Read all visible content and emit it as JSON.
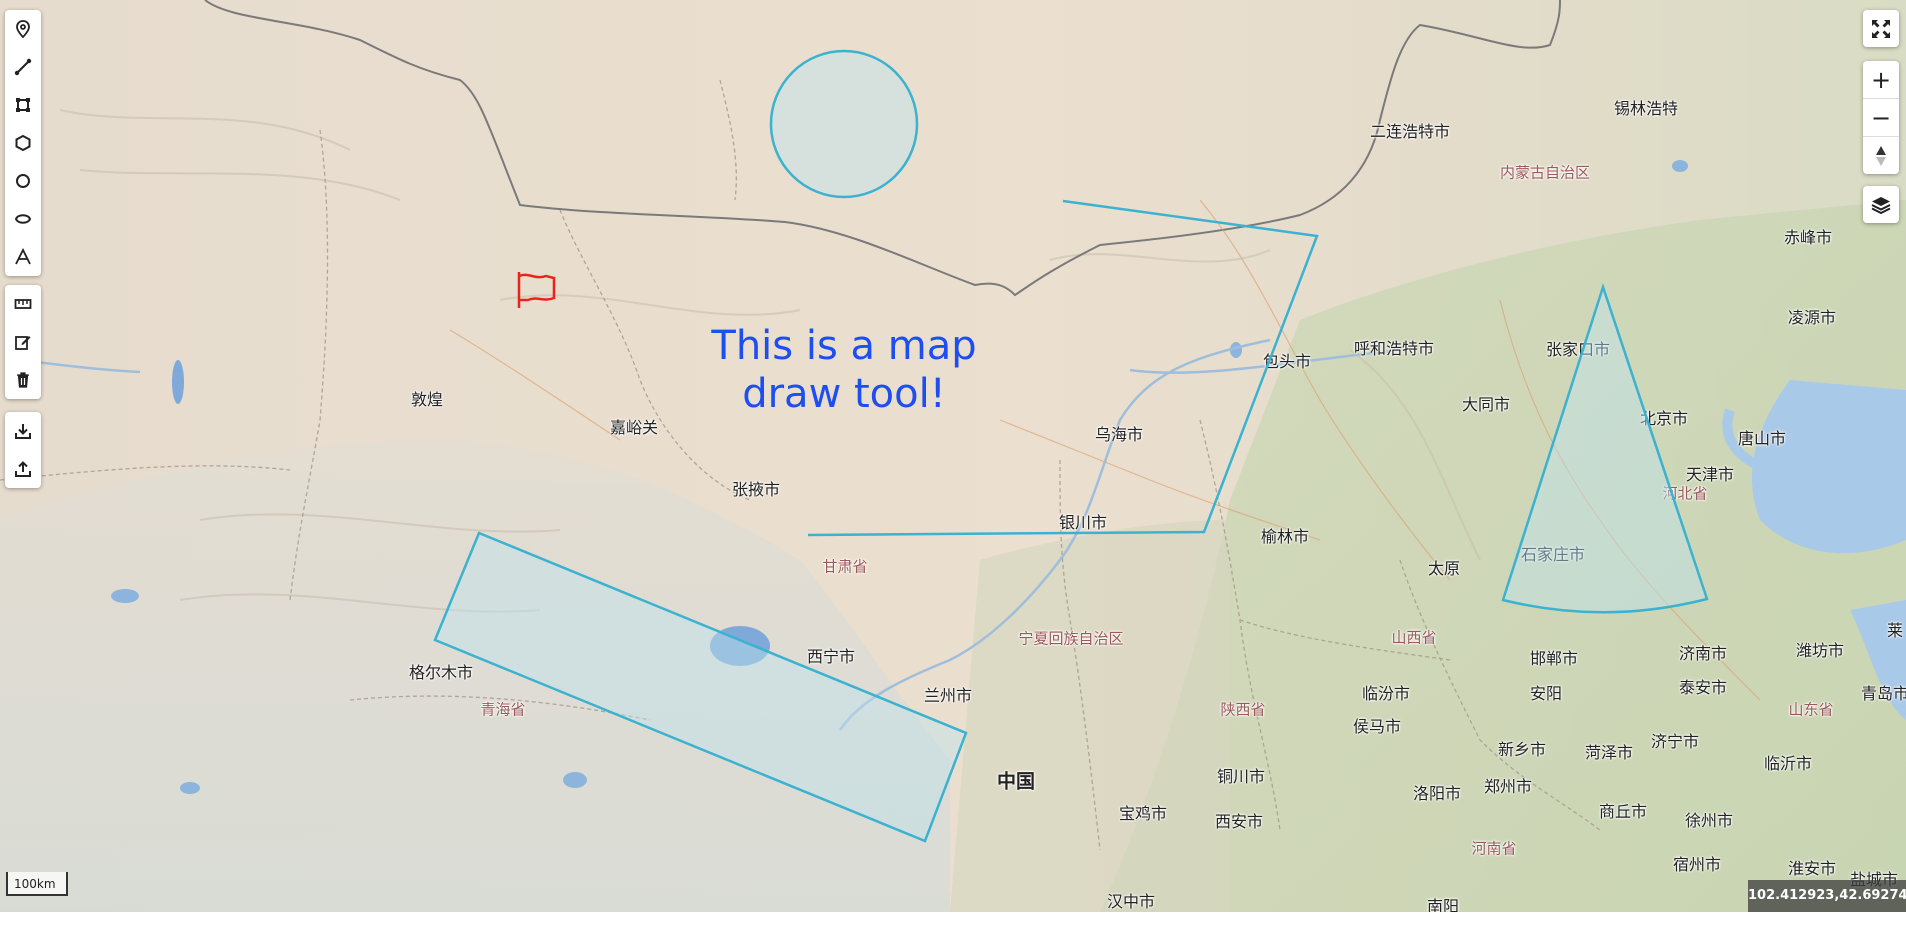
{
  "map": {
    "annotation_text_line1": "This is a map",
    "annotation_text_line2": "draw tool!",
    "scale_label": "100km",
    "coordinates": "102.412923,42.692740",
    "labels": [
      {
        "id": "erlian",
        "text": "二连浩特市",
        "kind": "city"
      },
      {
        "id": "xilinhot",
        "text": "锡林浩特",
        "kind": "city"
      },
      {
        "id": "neimenggu",
        "text": "内蒙古自治区",
        "kind": "province"
      },
      {
        "id": "chifeng",
        "text": "赤峰市",
        "kind": "city"
      },
      {
        "id": "lingyuan",
        "text": "凌源市",
        "kind": "city"
      },
      {
        "id": "baotou",
        "text": "包头市",
        "kind": "city"
      },
      {
        "id": "hohhot",
        "text": "呼和浩特市",
        "kind": "city"
      },
      {
        "id": "zhangjiakou",
        "text": "张家口市",
        "kind": "city"
      },
      {
        "id": "datong",
        "text": "大同市",
        "kind": "city"
      },
      {
        "id": "beijing",
        "text": "北京市",
        "kind": "city"
      },
      {
        "id": "tangshan",
        "text": "唐山市",
        "kind": "city"
      },
      {
        "id": "tianjin",
        "text": "天津市",
        "kind": "city"
      },
      {
        "id": "hebei",
        "text": "河北省",
        "kind": "province"
      },
      {
        "id": "dunhuang",
        "text": "敦煌",
        "kind": "city"
      },
      {
        "id": "jiayuguan",
        "text": "嘉峪关",
        "kind": "city"
      },
      {
        "id": "wuhai",
        "text": "乌海市",
        "kind": "city"
      },
      {
        "id": "zhangye",
        "text": "张掖市",
        "kind": "city"
      },
      {
        "id": "yinchuan",
        "text": "银川市",
        "kind": "city"
      },
      {
        "id": "yulin",
        "text": "榆林市",
        "kind": "city"
      },
      {
        "id": "taiyuan",
        "text": "太原",
        "kind": "city"
      },
      {
        "id": "shijiazhuang",
        "text": "石家庄市",
        "kind": "city"
      },
      {
        "id": "gansu",
        "text": "甘肃省",
        "kind": "province"
      },
      {
        "id": "ningxia",
        "text": "宁夏回族自治区",
        "kind": "province"
      },
      {
        "id": "shanxi",
        "text": "山西省",
        "kind": "province"
      },
      {
        "id": "xining",
        "text": "西宁市",
        "kind": "city"
      },
      {
        "id": "golmud",
        "text": "格尔木市",
        "kind": "city"
      },
      {
        "id": "qinghai",
        "text": "青海省",
        "kind": "province"
      },
      {
        "id": "lanzhou",
        "text": "兰州市",
        "kind": "city"
      },
      {
        "id": "handan",
        "text": "邯郸市",
        "kind": "city"
      },
      {
        "id": "jinan",
        "text": "济南市",
        "kind": "city"
      },
      {
        "id": "weifang",
        "text": "潍坊市",
        "kind": "city"
      },
      {
        "id": "lai",
        "text": "莱",
        "kind": "city"
      },
      {
        "id": "taian",
        "text": "泰安市",
        "kind": "city"
      },
      {
        "id": "anyang",
        "text": "安阳",
        "kind": "city"
      },
      {
        "id": "linfen",
        "text": "临汾市",
        "kind": "city"
      },
      {
        "id": "shaanxi",
        "text": "陕西省",
        "kind": "province"
      },
      {
        "id": "shandong",
        "text": "山东省",
        "kind": "province"
      },
      {
        "id": "qingdao",
        "text": "青岛市",
        "kind": "city"
      },
      {
        "id": "houma",
        "text": "侯马市",
        "kind": "city"
      },
      {
        "id": "xinxiang",
        "text": "新乡市",
        "kind": "city"
      },
      {
        "id": "heze",
        "text": "菏泽市",
        "kind": "city"
      },
      {
        "id": "jining",
        "text": "济宁市",
        "kind": "city"
      },
      {
        "id": "linyi",
        "text": "临沂市",
        "kind": "city"
      },
      {
        "id": "zhongguo",
        "text": "中国",
        "kind": "country"
      },
      {
        "id": "tongchuan",
        "text": "铜川市",
        "kind": "city"
      },
      {
        "id": "luoyang",
        "text": "洛阳市",
        "kind": "city"
      },
      {
        "id": "zhengzhou",
        "text": "郑州市",
        "kind": "city"
      },
      {
        "id": "baoji",
        "text": "宝鸡市",
        "kind": "city"
      },
      {
        "id": "xian",
        "text": "西安市",
        "kind": "city"
      },
      {
        "id": "shangqiu",
        "text": "商丘市",
        "kind": "city"
      },
      {
        "id": "xuzhou",
        "text": "徐州市",
        "kind": "city"
      },
      {
        "id": "henan",
        "text": "河南省",
        "kind": "province"
      },
      {
        "id": "suzhou",
        "text": "宿州市",
        "kind": "city"
      },
      {
        "id": "huaian",
        "text": "淮安市",
        "kind": "city"
      },
      {
        "id": "yancheng",
        "text": "盐城市",
        "kind": "city"
      },
      {
        "id": "hanzhong",
        "text": "汉中市",
        "kind": "city"
      },
      {
        "id": "nanyang",
        "text": "南阳",
        "kind": "city"
      }
    ]
  },
  "draw_toolbar": [
    {
      "id": "marker",
      "icon": "marker-icon"
    },
    {
      "id": "polyline",
      "icon": "polyline-icon"
    },
    {
      "id": "rectangle",
      "icon": "rectangle-icon"
    },
    {
      "id": "polygon",
      "icon": "polygon-icon"
    },
    {
      "id": "circle",
      "icon": "circle-icon"
    },
    {
      "id": "ellipse",
      "icon": "ellipse-icon"
    },
    {
      "id": "text",
      "icon": "text-icon"
    }
  ],
  "edit_toolbar": [
    {
      "id": "measure",
      "icon": "ruler-icon"
    },
    {
      "id": "edit",
      "icon": "edit-icon"
    },
    {
      "id": "delete",
      "icon": "trash-icon"
    }
  ],
  "io_toolbar": [
    {
      "id": "import",
      "icon": "import-icon"
    },
    {
      "id": "export",
      "icon": "export-icon"
    }
  ],
  "controls": {
    "zoom_in": "+",
    "zoom_out": "−"
  },
  "colors": {
    "shape_stroke": "#3bb2d0",
    "shape_fill": "#bfe3ee",
    "flag": "#e8241b",
    "annotation_text": "#1d4ef0"
  }
}
